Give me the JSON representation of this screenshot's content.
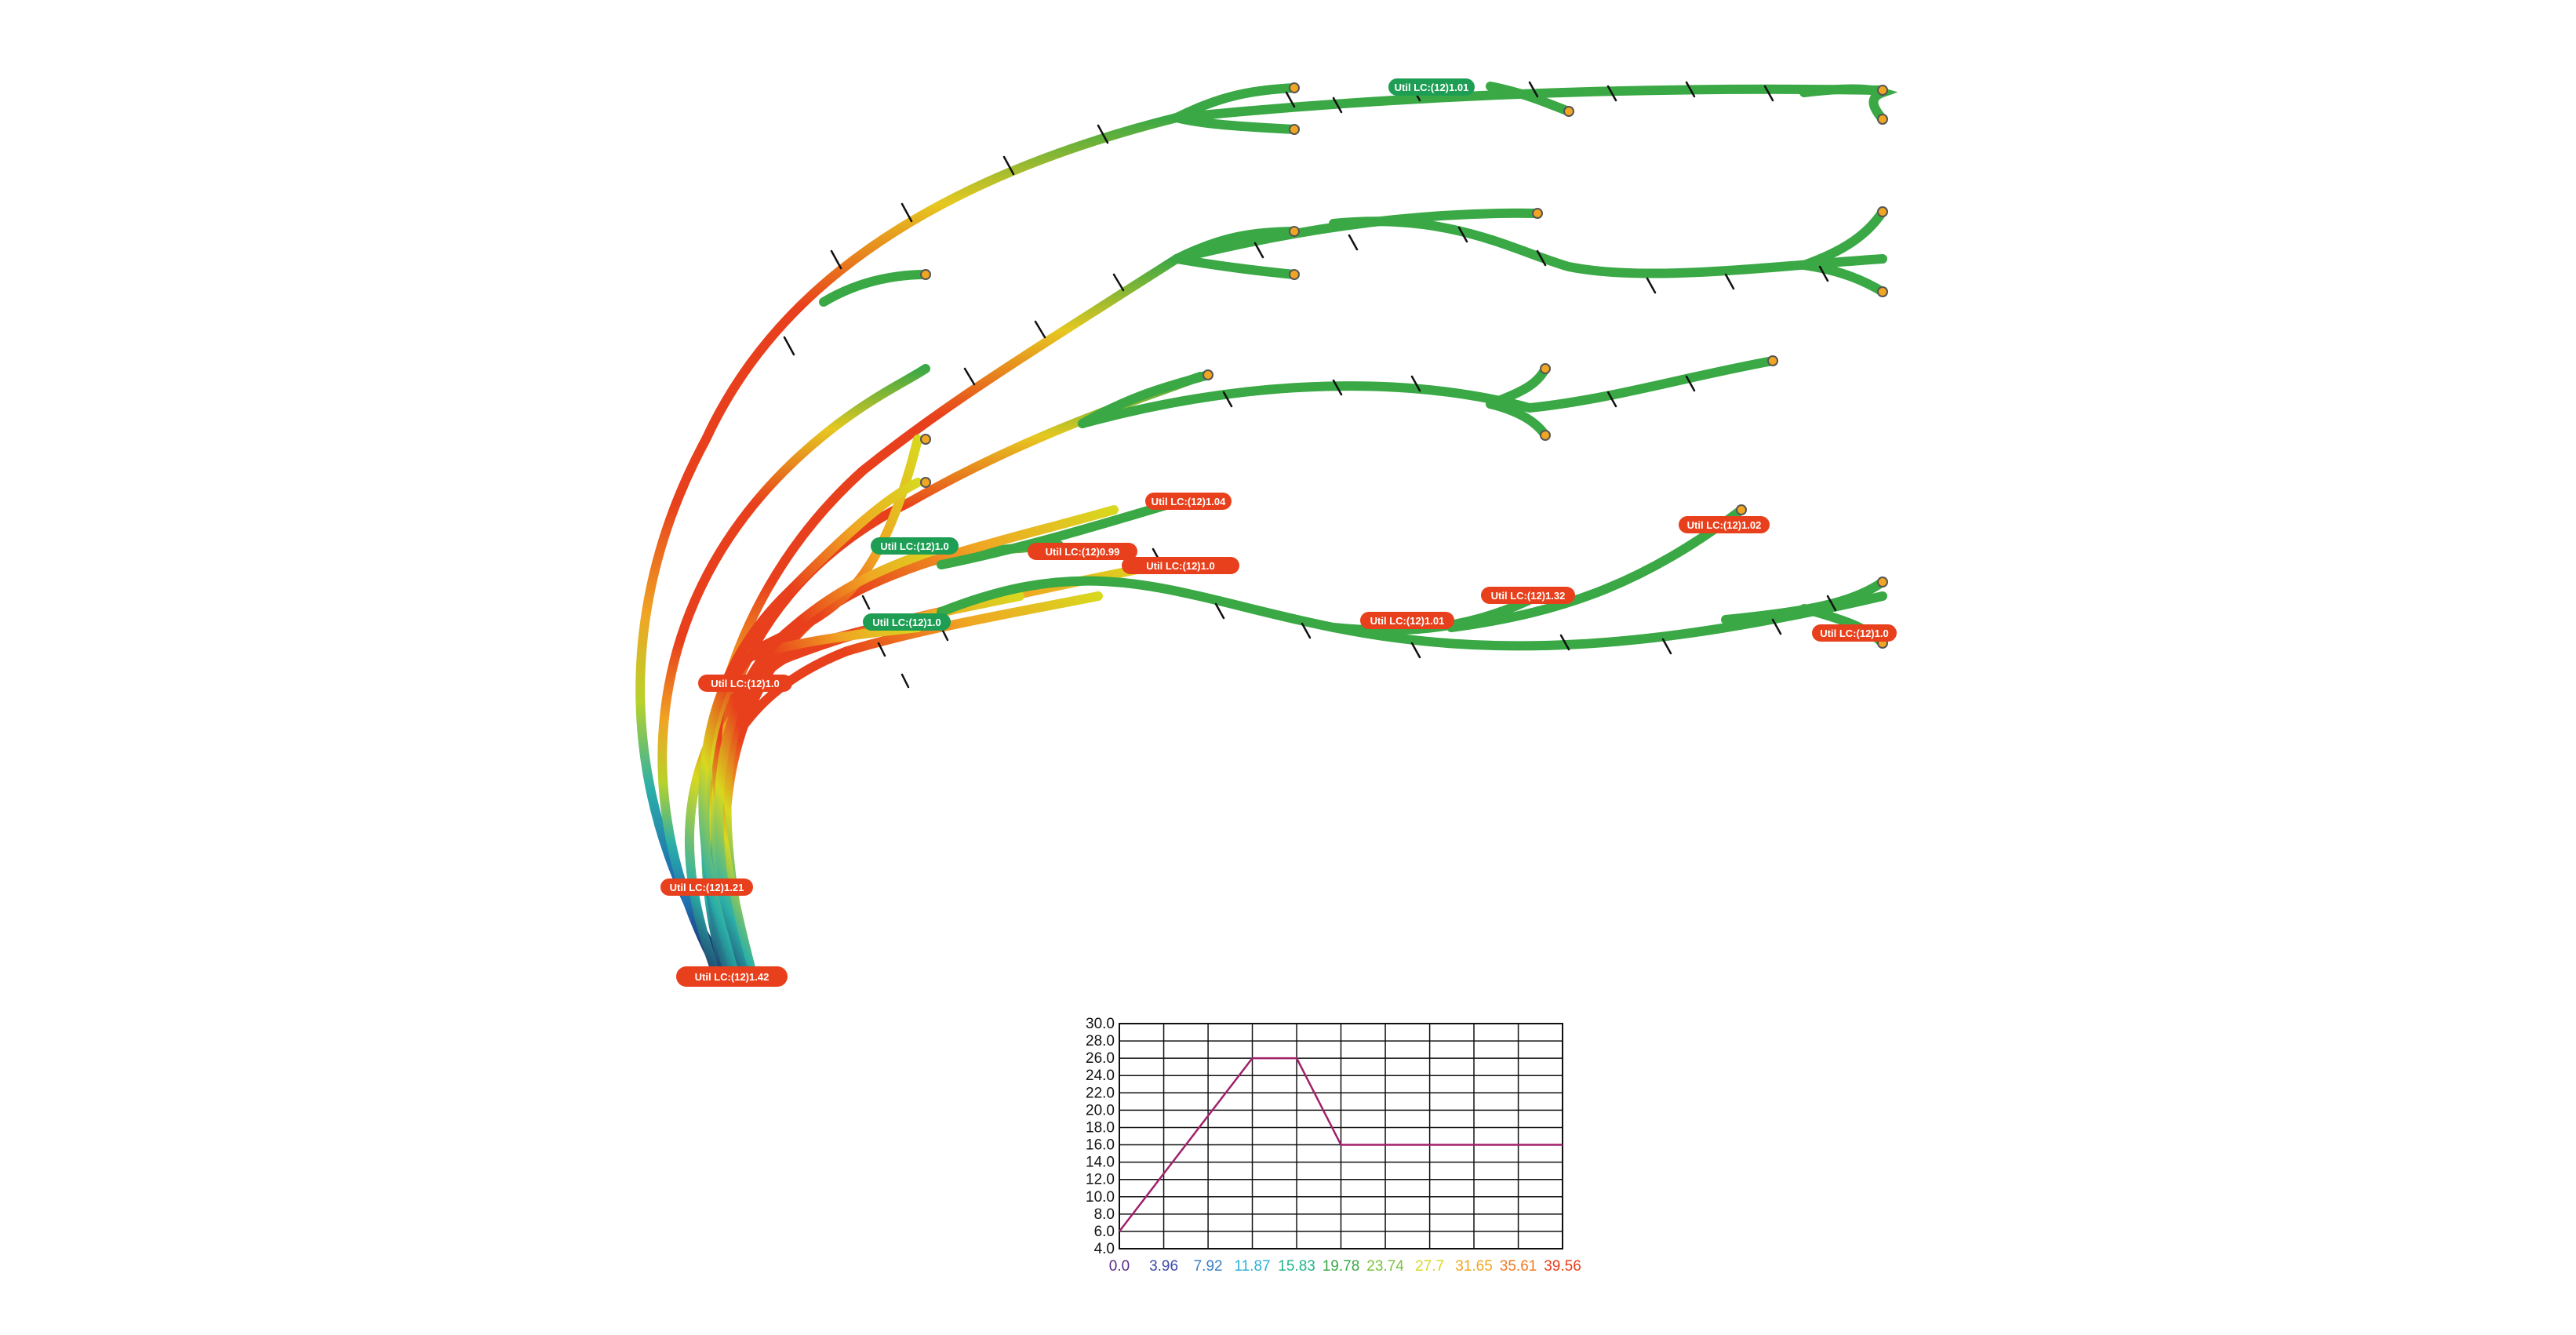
{
  "utilization_labels": [
    {
      "text": "Util LC:(12)1.01",
      "status": "green"
    },
    {
      "text": "Util LC:(12)1.04",
      "status": "red"
    },
    {
      "text": "Util LC:(12)0.99",
      "status": "red"
    },
    {
      "text": "Util LC:(12)1.0",
      "status": "red"
    },
    {
      "text": "Util LC:(12)1.0",
      "status": "green"
    },
    {
      "text": "Util LC:(12)1.0",
      "status": "green"
    },
    {
      "text": "Util LC:(12)1.01",
      "status": "red"
    },
    {
      "text": "Util LC:(12)1.32",
      "status": "red"
    },
    {
      "text": "Util LC:(12)1.02",
      "status": "red"
    },
    {
      "text": "Util LC:(12)1.0",
      "status": "red"
    },
    {
      "text": "Util LC:(12)1.0",
      "status": "red"
    },
    {
      "text": "Util LC:(12)1.21",
      "status": "red"
    },
    {
      "text": "Util LC:(12)1.42",
      "status": "red"
    }
  ],
  "status_colors": {
    "red": "#e8401c",
    "green": "#1e9e54"
  },
  "legend_chart": {
    "y_ticks": [
      "30.0",
      "28.0",
      "26.0",
      "24.0",
      "22.0",
      "20.0",
      "18.0",
      "16.0",
      "14.0",
      "12.0",
      "10.0",
      "8.0",
      "6.0",
      "4.0"
    ],
    "x_ticks": [
      "0.0",
      "3.96",
      "7.92",
      "11.87",
      "15.83",
      "19.78",
      "23.74",
      "27.7",
      "31.65",
      "35.61",
      "39.56"
    ],
    "x_tick_colors": [
      "#5b2a86",
      "#3b4ba8",
      "#3a7fc4",
      "#2bb0d8",
      "#22b58a",
      "#3aa845",
      "#7ac23a",
      "#d8d81f",
      "#f0a623",
      "#f07a23",
      "#e8401c"
    ],
    "ylim": [
      4.0,
      30.0
    ],
    "xlim": [
      0.0,
      39.56
    ],
    "line_color": "#a0206a",
    "points": [
      [
        0.0,
        6.0
      ],
      [
        11.87,
        26.0
      ],
      [
        15.83,
        26.0
      ],
      [
        19.78,
        16.0
      ],
      [
        39.56,
        16.0
      ]
    ]
  }
}
